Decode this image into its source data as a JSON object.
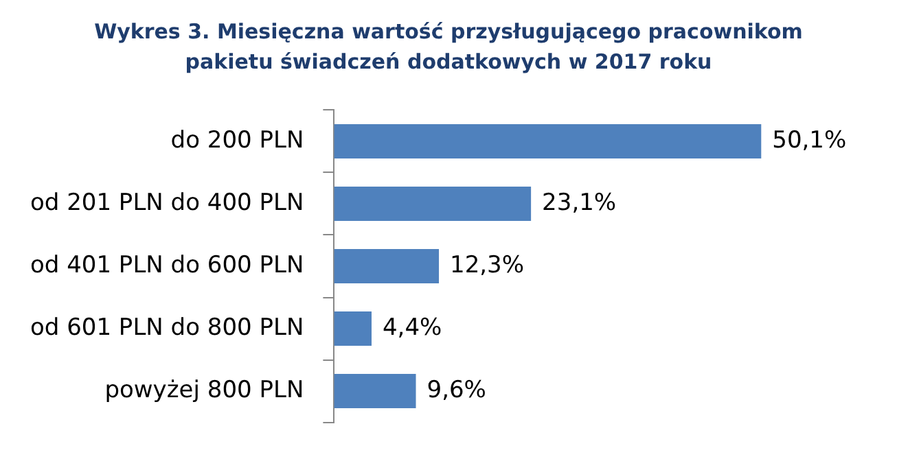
{
  "chart_data": {
    "type": "bar",
    "orientation": "horizontal",
    "title": "Wykres 3. Miesięczna wartość przysługującego pracownikom pakietu świadczeń dodatkowych w 2017 roku",
    "categories": [
      "do 200 PLN",
      "od 201 PLN do 400 PLN",
      "od 401 PLN do 600 PLN",
      "od 601 PLN do 800 PLN",
      "powyżej 800 PLN"
    ],
    "values": [
      50.1,
      23.1,
      12.3,
      4.4,
      9.6
    ],
    "value_labels": [
      "50,1%",
      "23,1%",
      "12,3%",
      "4,4%",
      "9,6%"
    ],
    "color": "#4f81bd"
  }
}
